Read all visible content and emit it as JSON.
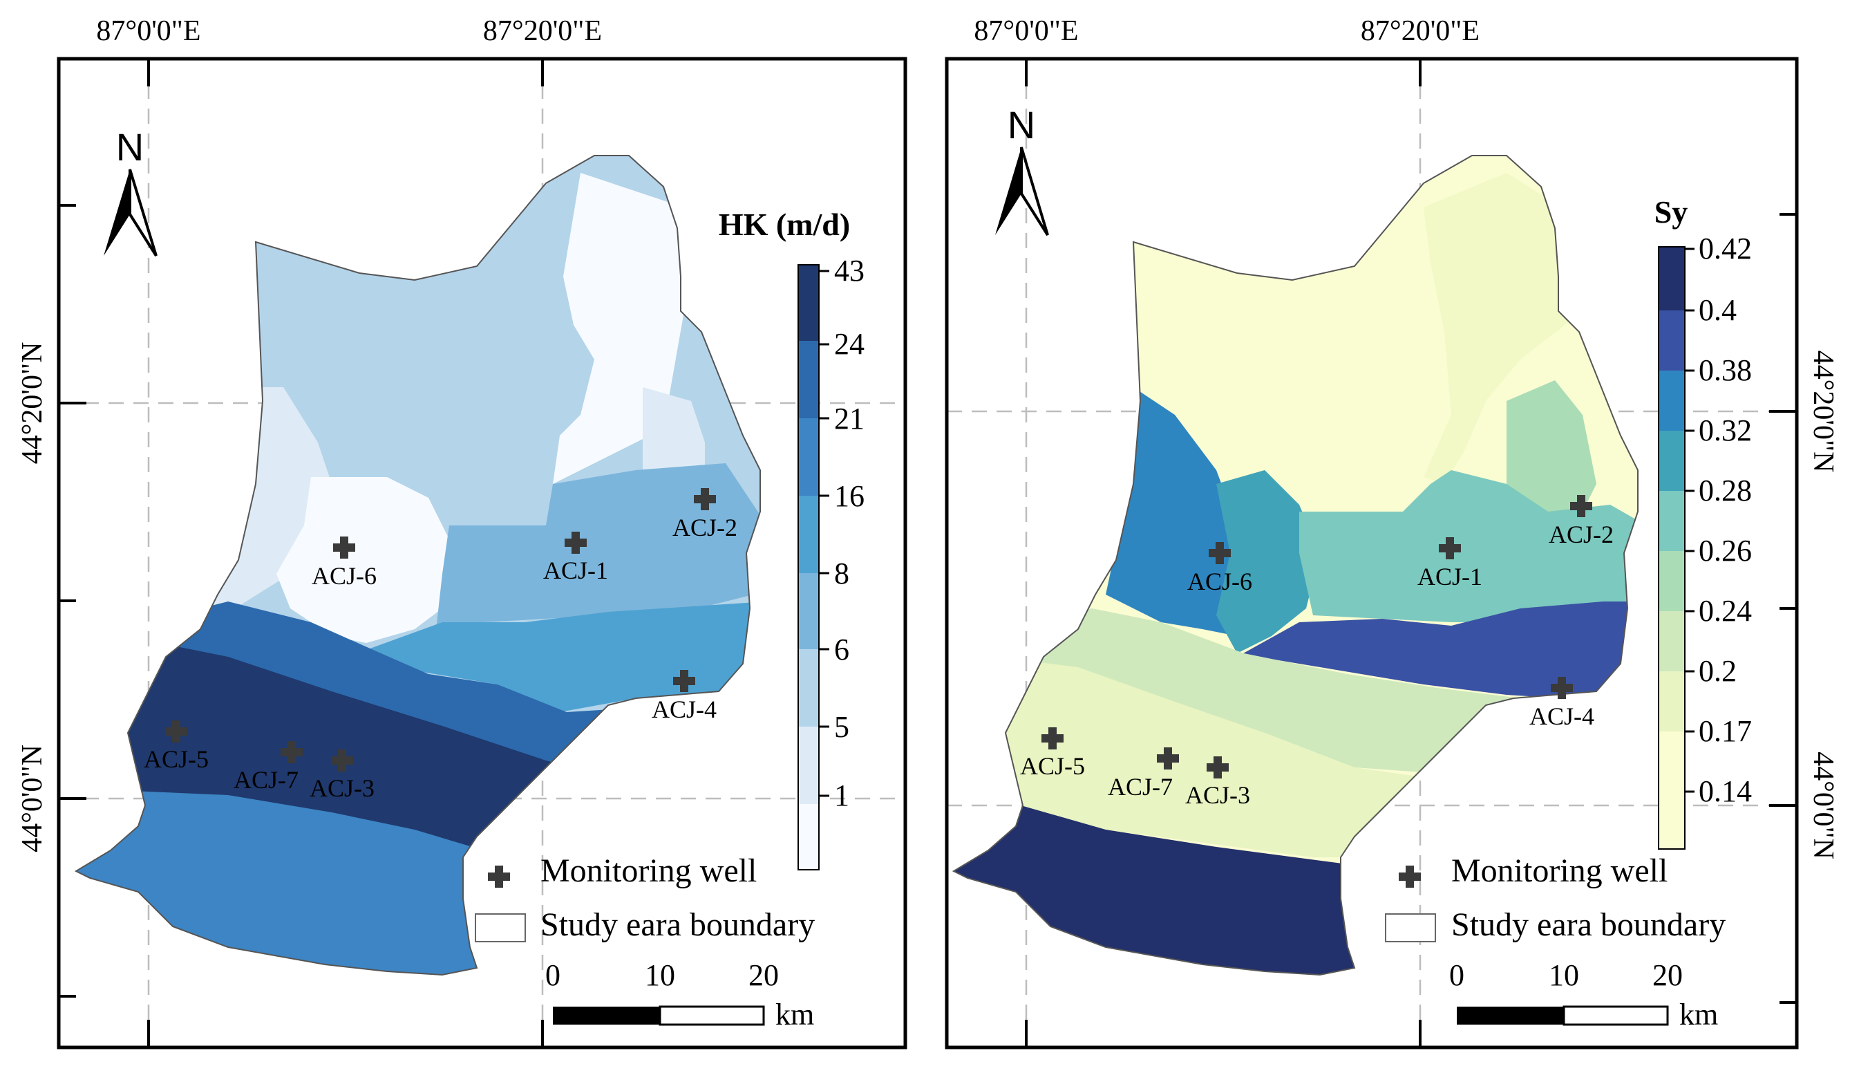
{
  "colors": {
    "background": "#ffffff",
    "frame": "#000000",
    "boundary": "#555555",
    "well_marker": "#3a3a3a"
  },
  "left_map": {
    "coord_labels": {
      "top_left": "87°0'0\"E",
      "top_right": "87°20'0\"E",
      "side_top": "44°20'0\"N",
      "side_bottom": "44°0'0\"N"
    },
    "north_label": "N",
    "legend_title": "HK (m/d)",
    "legend_ticks": [
      "43",
      "24",
      "21",
      "16",
      "8",
      "6",
      "5",
      "1"
    ],
    "legend_colors": [
      "#20396e",
      "#2c6aad",
      "#3d85c4",
      "#4ea2d2",
      "#7cb5db",
      "#b4d4ea",
      "#deebf6",
      "#f7fbff"
    ],
    "wells": [
      "ACJ-1",
      "ACJ-2",
      "ACJ-3",
      "ACJ-4",
      "ACJ-5",
      "ACJ-6",
      "ACJ-7"
    ],
    "monitoring_well_label": "Monitoring well",
    "boundary_label": "Study eara boundary",
    "scale_ticks": [
      "0",
      "10",
      "20"
    ],
    "scale_unit": "km"
  },
  "right_map": {
    "coord_labels": {
      "top_left": "87°0'0\"E",
      "top_right": "87°20'0\"E",
      "side_top": "44°20'0\"N",
      "side_bottom": "44°0'0\"N"
    },
    "north_label": "N",
    "legend_title": "Sy",
    "legend_ticks": [
      "0.42",
      "0.4",
      "0.38",
      "0.32",
      "0.28",
      "0.26",
      "0.24",
      "0.2",
      "0.17",
      "0.14"
    ],
    "legend_colors": [
      "#22306b",
      "#3a52a4",
      "#2e86c0",
      "#40a3b8",
      "#7cc9bf",
      "#aadcb6",
      "#cfe9bc",
      "#e8f4c1",
      "#fafcd2"
    ],
    "wells": [
      "ACJ-1",
      "ACJ-2",
      "ACJ-3",
      "ACJ-4",
      "ACJ-5",
      "ACJ-6",
      "ACJ-7"
    ],
    "monitoring_well_label": "Monitoring well",
    "boundary_label": "Study eara boundary",
    "scale_ticks": [
      "0",
      "10",
      "20"
    ],
    "scale_unit": "km"
  }
}
